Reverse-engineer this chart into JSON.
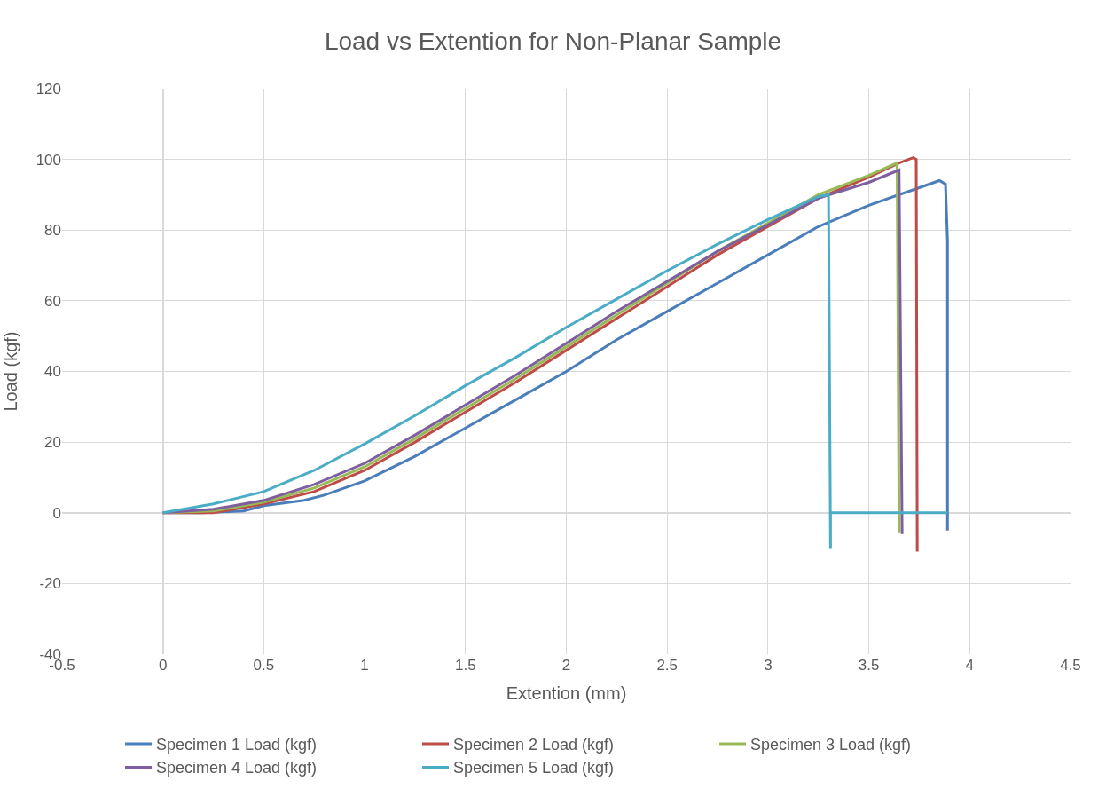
{
  "chart_data": {
    "type": "line",
    "title": "Load vs Extention for Non-Planar Sample",
    "xlabel": "Extention (mm)",
    "ylabel": "Load (kgf)",
    "xlim": [
      -0.5,
      4.5
    ],
    "xticks": [
      -0.5,
      0,
      0.5,
      1,
      1.5,
      2,
      2.5,
      3,
      3.5,
      4,
      4.5
    ],
    "ylim": [
      -40,
      120
    ],
    "yticks": [
      -40,
      -20,
      0,
      20,
      40,
      60,
      80,
      100,
      120
    ],
    "grid": true,
    "legend": "bottom",
    "marker": "none",
    "line_style": "solid",
    "series": [
      {
        "name": "Specimen 1 Load (kgf)",
        "color": "#4a7ebb",
        "x": [
          0,
          0.2,
          0.4,
          0.5,
          0.7,
          0.8,
          1,
          1.25,
          1.5,
          1.75,
          2,
          2.25,
          2.5,
          2.75,
          3,
          3.25,
          3.5,
          3.75,
          3.85,
          3.88,
          3.89,
          3.89
        ],
        "values": [
          0,
          0,
          0.5,
          2,
          3.5,
          5,
          9,
          16,
          24,
          32,
          40,
          49,
          57,
          65,
          73,
          81,
          87,
          92,
          94,
          93,
          77,
          -5
        ]
      },
      {
        "name": "Specimen 2 Load (kgf)",
        "color": "#be4b48",
        "x": [
          0,
          0.25,
          0.5,
          0.75,
          1,
          1.25,
          1.5,
          1.75,
          2,
          2.25,
          2.5,
          2.75,
          3,
          3.25,
          3.5,
          3.65,
          3.72,
          3.735,
          3.74
        ],
        "values": [
          0,
          0,
          2.5,
          6,
          12,
          20,
          28.5,
          37,
          46,
          55,
          64,
          73,
          81,
          89,
          95,
          99,
          100.5,
          100,
          -11
        ]
      },
      {
        "name": "Specimen 3 Load (kgf)",
        "color": "#98b954",
        "x": [
          0,
          0.25,
          0.5,
          0.75,
          1,
          1.25,
          1.5,
          1.75,
          2,
          2.25,
          2.5,
          2.75,
          3,
          3.25,
          3.5,
          3.64,
          3.65
        ],
        "values": [
          0,
          0.5,
          3,
          7,
          13,
          21,
          29.5,
          38,
          47,
          56,
          65,
          74,
          82,
          90,
          95.5,
          99,
          -5.5
        ]
      },
      {
        "name": "Specimen 4 Load (kgf)",
        "color": "#7d5fa0",
        "x": [
          0,
          0.25,
          0.5,
          0.75,
          1,
          1.25,
          1.5,
          1.75,
          2,
          2.25,
          2.5,
          2.75,
          3,
          3.25,
          3.5,
          3.65,
          3.665
        ],
        "values": [
          0,
          1,
          3.5,
          8,
          14,
          22,
          30.5,
          39,
          48,
          57,
          65.5,
          74,
          81.5,
          89,
          93.5,
          97,
          -6
        ]
      },
      {
        "name": "Specimen 5 Load (kgf)",
        "color": "#4bacc6",
        "x": [
          0,
          0.25,
          0.5,
          0.75,
          1,
          1.25,
          1.5,
          1.75,
          2,
          2.25,
          2.5,
          2.75,
          3,
          3.25,
          3.3,
          3.31,
          3.31,
          3.89
        ],
        "values": [
          0,
          2.5,
          6,
          12,
          19.5,
          27.5,
          36,
          44,
          52.5,
          60.5,
          68.5,
          76,
          83,
          89.5,
          90,
          -10,
          0,
          0
        ]
      }
    ]
  }
}
